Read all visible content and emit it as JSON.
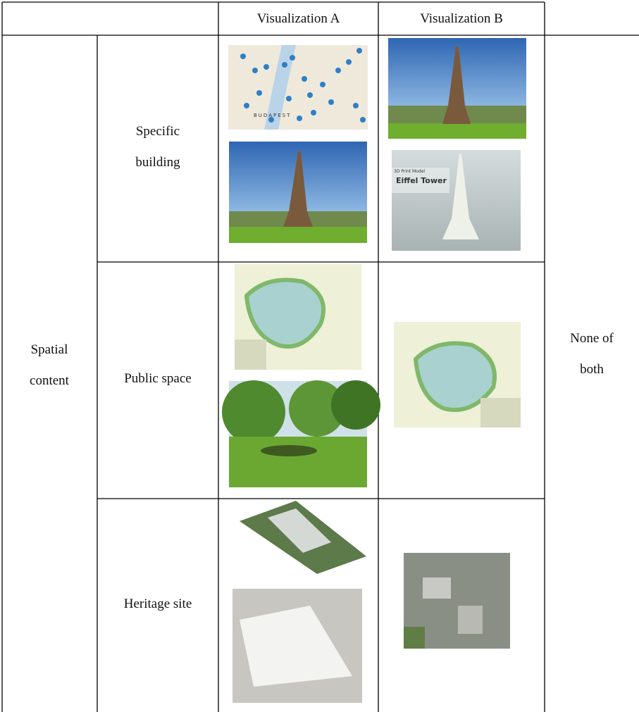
{
  "table": {
    "header": [
      "Visualization A",
      "Visualization B"
    ],
    "row_group": "Spatial content",
    "rows": [
      "Specific building",
      "Public space",
      "Heritage site"
    ],
    "last_column": "None of both"
  },
  "image_texts": {
    "map_city": "BUDAPEST",
    "model_caption": "3D Print Model",
    "model_title": "Eiffel Tower"
  }
}
